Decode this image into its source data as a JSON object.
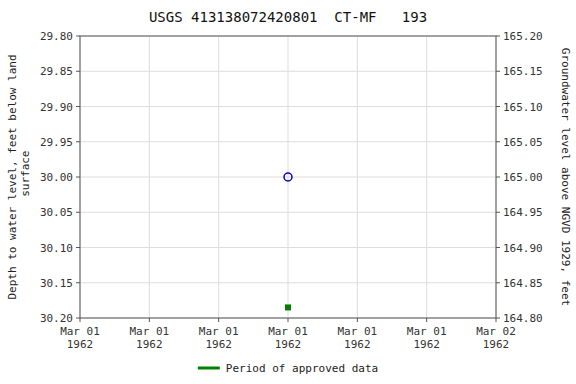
{
  "chart_data": {
    "type": "scatter",
    "title": "USGS 413138072420801  CT-MF   193",
    "ylabel": "Depth to water level, feet below land\n surface",
    "y2label": "Groundwater level above NGVD 1929, feet",
    "categories": [
      "Mar 01\n1962",
      "Mar 01\n1962",
      "Mar 01\n1962",
      "Mar 01\n1962",
      "Mar 01\n1962",
      "Mar 01\n1962",
      "Mar 02\n1962"
    ],
    "series": [
      {
        "color": "#0000cc",
        "marker": "open_circle",
        "values": [
          null,
          null,
          null,
          30.0,
          null,
          null,
          null
        ]
      },
      {
        "name": "Period of approved data",
        "color": "#008000",
        "marker": "square",
        "values": [
          null,
          null,
          null,
          30.185,
          null,
          null,
          null
        ]
      }
    ],
    "ylim": [
      30.2,
      29.8
    ],
    "yticks": [
      {
        "value": 29.8,
        "label": "29.80"
      },
      {
        "value": 29.85,
        "label": "29.85"
      },
      {
        "value": 29.9,
        "label": "29.90"
      },
      {
        "value": 29.95,
        "label": "29.95"
      },
      {
        "value": 30.0,
        "label": "30.00"
      },
      {
        "value": 30.05,
        "label": "30.05"
      },
      {
        "value": 30.1,
        "label": "30.10"
      },
      {
        "value": 30.15,
        "label": "30.15"
      },
      {
        "value": 30.2,
        "label": "30.20"
      }
    ],
    "y2lim": [
      164.8,
      165.2
    ],
    "y2ticks": [
      {
        "value": 164.8,
        "label": "164.80"
      },
      {
        "value": 164.85,
        "label": "164.85"
      },
      {
        "value": 164.9,
        "label": "164.90"
      },
      {
        "value": 164.95,
        "label": "164.95"
      },
      {
        "value": 165.0,
        "label": "165.00"
      },
      {
        "value": 165.05,
        "label": "165.05"
      },
      {
        "value": 165.1,
        "label": "165.10"
      },
      {
        "value": 165.15,
        "label": "165.15"
      },
      {
        "value": 165.2,
        "label": "165.20"
      }
    ],
    "grid": true,
    "legend": "bottom"
  }
}
